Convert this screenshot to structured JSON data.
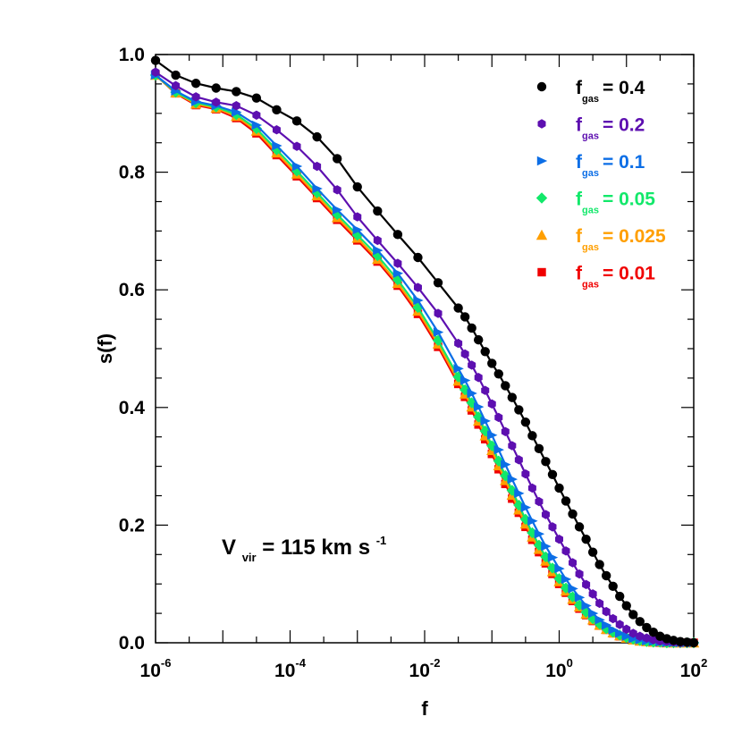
{
  "chart_data": {
    "type": "line",
    "title": "",
    "xlabel": "f",
    "ylabel": "s(f)",
    "x_scale": "log",
    "xlim": [
      1e-06,
      100
    ],
    "ylim": [
      0.0,
      1.0
    ],
    "x_ticks": [
      {
        "value": 1e-06,
        "base": "10",
        "exp": "-6"
      },
      {
        "value": 0.0001,
        "base": "10",
        "exp": "-4"
      },
      {
        "value": 0.01,
        "base": "10",
        "exp": "-2"
      },
      {
        "value": 1,
        "base": "10",
        "exp": "0"
      },
      {
        "value": 100,
        "base": "10",
        "exp": "2"
      }
    ],
    "y_ticks": [
      {
        "value": 0.0,
        "label": "0.0"
      },
      {
        "value": 0.2,
        "label": "0.2"
      },
      {
        "value": 0.4,
        "label": "0.4"
      },
      {
        "value": 0.6,
        "label": "0.6"
      },
      {
        "value": 0.8,
        "label": "0.8"
      },
      {
        "value": 1.0,
        "label": "1.0"
      }
    ],
    "annotation": {
      "prefix": "V",
      "sub": "vir",
      "mid": " = 115 km s",
      "sup": "-1"
    },
    "legend_position": "top-right",
    "x_log": [
      -6.0,
      -5.7,
      -5.4,
      -5.1,
      -4.8,
      -4.5,
      -4.2,
      -3.9,
      -3.6,
      -3.3,
      -3.0,
      -2.7,
      -2.4,
      -2.1,
      -1.8,
      -1.5,
      -1.4,
      -1.3,
      -1.2,
      -1.1,
      -1.0,
      -0.9,
      -0.8,
      -0.7,
      -0.6,
      -0.5,
      -0.4,
      -0.3,
      -0.2,
      -0.1,
      0.0,
      0.1,
      0.2,
      0.3,
      0.4,
      0.5,
      0.6,
      0.7,
      0.8,
      0.9,
      1.0,
      1.1,
      1.2,
      1.3,
      1.4,
      1.5,
      1.6,
      1.7,
      1.8,
      1.9,
      2.0
    ],
    "series": [
      {
        "name": "f_gas = 0.4",
        "label_prefix": "f",
        "label_sub": "gas",
        "label_value": "= 0.4",
        "color": "#000000",
        "marker": "circle",
        "values": [
          0.99,
          0.965,
          0.951,
          0.943,
          0.937,
          0.926,
          0.906,
          0.887,
          0.86,
          0.823,
          0.775,
          0.734,
          0.694,
          0.655,
          0.612,
          0.569,
          0.554,
          0.535,
          0.515,
          0.495,
          0.475,
          0.457,
          0.437,
          0.417,
          0.396,
          0.375,
          0.352,
          0.33,
          0.308,
          0.286,
          0.263,
          0.241,
          0.219,
          0.197,
          0.176,
          0.154,
          0.133,
          0.114,
          0.096,
          0.079,
          0.063,
          0.048,
          0.036,
          0.026,
          0.018,
          0.011,
          0.007,
          0.004,
          0.002,
          0.001,
          0.0
        ]
      },
      {
        "name": "f_gas = 0.2",
        "label_prefix": "f",
        "label_sub": "gas",
        "label_value": "= 0.2",
        "color": "#5d0fb0",
        "marker": "hexagon",
        "values": [
          0.97,
          0.947,
          0.928,
          0.919,
          0.913,
          0.897,
          0.872,
          0.844,
          0.81,
          0.77,
          0.724,
          0.684,
          0.645,
          0.604,
          0.56,
          0.509,
          0.491,
          0.472,
          0.451,
          0.429,
          0.406,
          0.383,
          0.359,
          0.335,
          0.311,
          0.287,
          0.263,
          0.24,
          0.218,
          0.197,
          0.176,
          0.156,
          0.136,
          0.117,
          0.099,
          0.083,
          0.067,
          0.053,
          0.041,
          0.031,
          0.023,
          0.016,
          0.011,
          0.008,
          0.005,
          0.003,
          0.002,
          0.001,
          0.0,
          0.0,
          0.0
        ]
      },
      {
        "name": "f_gas = 0.1",
        "label_prefix": "f",
        "label_sub": "gas",
        "label_value": "= 0.1",
        "color": "#0c6ee6",
        "marker": "triangle-right",
        "values": [
          0.965,
          0.938,
          0.92,
          0.913,
          0.902,
          0.88,
          0.845,
          0.81,
          0.772,
          0.736,
          0.702,
          0.667,
          0.628,
          0.582,
          0.528,
          0.466,
          0.446,
          0.424,
          0.401,
          0.377,
          0.353,
          0.328,
          0.303,
          0.278,
          0.254,
          0.23,
          0.207,
          0.185,
          0.164,
          0.145,
          0.126,
          0.108,
          0.092,
          0.077,
          0.063,
          0.05,
          0.039,
          0.03,
          0.022,
          0.016,
          0.011,
          0.007,
          0.005,
          0.003,
          0.002,
          0.001,
          0.0,
          0.0,
          0.0,
          0.0,
          0.0
        ]
      },
      {
        "name": "f_gas = 0.05",
        "label_prefix": "f",
        "label_sub": "gas",
        "label_value": "= 0.05",
        "color": "#12e86a",
        "marker": "diamond",
        "values": [
          0.965,
          0.936,
          0.918,
          0.911,
          0.898,
          0.874,
          0.838,
          0.802,
          0.765,
          0.728,
          0.693,
          0.658,
          0.617,
          0.57,
          0.514,
          0.452,
          0.43,
          0.408,
          0.384,
          0.36,
          0.335,
          0.309,
          0.284,
          0.259,
          0.234,
          0.21,
          0.187,
          0.166,
          0.146,
          0.127,
          0.109,
          0.093,
          0.078,
          0.064,
          0.052,
          0.041,
          0.032,
          0.024,
          0.018,
          0.013,
          0.009,
          0.006,
          0.004,
          0.002,
          0.001,
          0.001,
          0.0,
          0.0,
          0.0,
          0.0,
          0.0
        ]
      },
      {
        "name": "f_gas = 0.025",
        "label_prefix": "f",
        "label_sub": "gas",
        "label_value": "= 0.025",
        "color": "#ff9f00",
        "marker": "triangle-up",
        "values": [
          0.965,
          0.935,
          0.916,
          0.909,
          0.895,
          0.87,
          0.833,
          0.797,
          0.76,
          0.723,
          0.688,
          0.652,
          0.611,
          0.564,
          0.508,
          0.445,
          0.423,
          0.401,
          0.377,
          0.352,
          0.327,
          0.301,
          0.276,
          0.251,
          0.226,
          0.202,
          0.18,
          0.159,
          0.139,
          0.121,
          0.104,
          0.088,
          0.074,
          0.061,
          0.049,
          0.039,
          0.03,
          0.023,
          0.017,
          0.012,
          0.008,
          0.005,
          0.003,
          0.002,
          0.001,
          0.001,
          0.0,
          0.0,
          0.0,
          0.0,
          0.0
        ]
      },
      {
        "name": "f_gas = 0.01",
        "label_prefix": "f",
        "label_sub": "gas",
        "label_value": "= 0.01",
        "color": "#f00000",
        "marker": "square",
        "values": [
          0.965,
          0.934,
          0.914,
          0.907,
          0.892,
          0.866,
          0.829,
          0.793,
          0.756,
          0.719,
          0.684,
          0.648,
          0.607,
          0.559,
          0.503,
          0.44,
          0.418,
          0.395,
          0.371,
          0.346,
          0.321,
          0.295,
          0.27,
          0.245,
          0.221,
          0.197,
          0.175,
          0.154,
          0.135,
          0.117,
          0.1,
          0.085,
          0.071,
          0.058,
          0.047,
          0.037,
          0.029,
          0.022,
          0.016,
          0.011,
          0.008,
          0.005,
          0.003,
          0.002,
          0.001,
          0.0,
          0.0,
          0.0,
          0.0,
          0.0,
          0.0
        ]
      }
    ]
  }
}
